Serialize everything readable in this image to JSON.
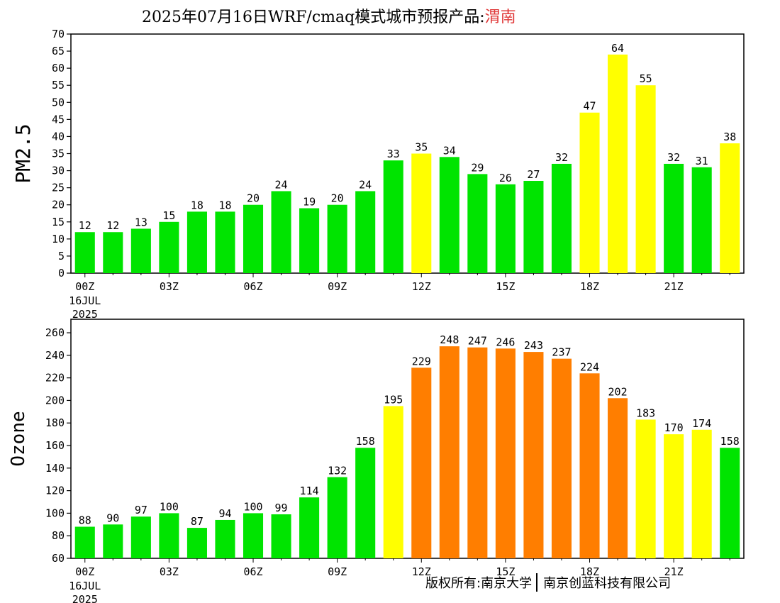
{
  "header": {
    "title_prefix": "2025年07月16日WRF/cmaq模式城市预报产品:",
    "city": "渭南"
  },
  "footer": {
    "copyright_left": "版权所有:南京大学",
    "copyright_right": "南京创蓝科技有限公司"
  },
  "colors": {
    "green": "#00e400",
    "yellow": "#ffff00",
    "orange": "#ff7e00",
    "city_title": "#e03a3a"
  },
  "chart_data": [
    {
      "type": "bar",
      "ylabel": "PM2.5",
      "ylim": [
        0,
        70
      ],
      "yticks": [
        0,
        5,
        10,
        15,
        20,
        25,
        30,
        35,
        40,
        45,
        50,
        55,
        60,
        65,
        70
      ],
      "hours": [
        "00Z",
        "01Z",
        "02Z",
        "03Z",
        "04Z",
        "05Z",
        "06Z",
        "07Z",
        "08Z",
        "09Z",
        "10Z",
        "11Z",
        "12Z",
        "13Z",
        "14Z",
        "15Z",
        "16Z",
        "17Z",
        "18Z",
        "19Z",
        "20Z",
        "21Z",
        "22Z",
        "23Z"
      ],
      "xtick_labels": [
        "00Z",
        "03Z",
        "06Z",
        "09Z",
        "12Z",
        "15Z",
        "18Z",
        "21Z"
      ],
      "date_label": [
        "16JUL",
        "2025"
      ],
      "values": [
        12,
        12,
        13,
        15,
        18,
        18,
        20,
        24,
        19,
        20,
        24,
        33,
        35,
        34,
        29,
        26,
        27,
        32,
        47,
        64,
        55,
        32,
        31,
        38
      ],
      "bar_colors": [
        "green",
        "green",
        "green",
        "green",
        "green",
        "green",
        "green",
        "green",
        "green",
        "green",
        "green",
        "green",
        "yellow",
        "green",
        "green",
        "green",
        "green",
        "green",
        "yellow",
        "yellow",
        "yellow",
        "green",
        "green",
        "yellow"
      ]
    },
    {
      "type": "bar",
      "ylabel": "Ozone",
      "ylim": [
        60,
        272
      ],
      "yticks": [
        60,
        80,
        100,
        120,
        140,
        160,
        180,
        200,
        220,
        240,
        260
      ],
      "hours": [
        "00Z",
        "01Z",
        "02Z",
        "03Z",
        "04Z",
        "05Z",
        "06Z",
        "07Z",
        "08Z",
        "09Z",
        "10Z",
        "11Z",
        "12Z",
        "13Z",
        "14Z",
        "15Z",
        "16Z",
        "17Z",
        "18Z",
        "19Z",
        "20Z",
        "21Z",
        "22Z",
        "23Z"
      ],
      "xtick_labels": [
        "00Z",
        "03Z",
        "06Z",
        "09Z",
        "12Z",
        "15Z",
        "18Z",
        "21Z"
      ],
      "date_label": [
        "16JUL",
        "2025"
      ],
      "values": [
        88,
        90,
        97,
        100,
        87,
        94,
        100,
        99,
        114,
        132,
        158,
        195,
        229,
        248,
        247,
        246,
        243,
        237,
        224,
        202,
        183,
        170,
        174,
        158
      ],
      "bar_colors": [
        "green",
        "green",
        "green",
        "green",
        "green",
        "green",
        "green",
        "green",
        "green",
        "green",
        "green",
        "yellow",
        "orange",
        "orange",
        "orange",
        "orange",
        "orange",
        "orange",
        "orange",
        "orange",
        "yellow",
        "yellow",
        "yellow",
        "green"
      ]
    }
  ]
}
